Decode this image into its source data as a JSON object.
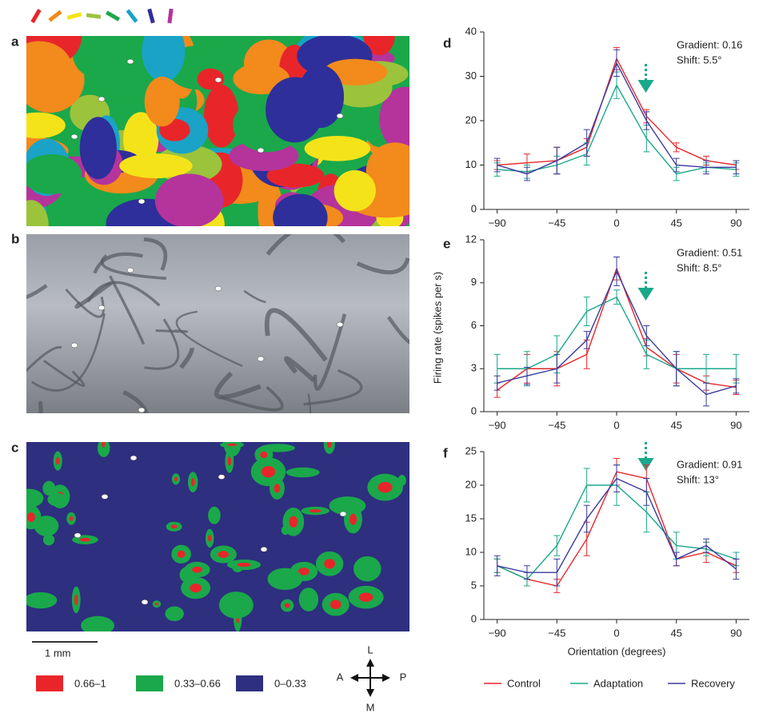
{
  "panel_labels": [
    "a",
    "b",
    "c",
    "d",
    "e",
    "f"
  ],
  "scale_bar": "1 mm",
  "map_legend": [
    {
      "label": "0.66–1",
      "color": "#e8262a"
    },
    {
      "label": "0.33–0.66",
      "color": "#1aa84b"
    },
    {
      "label": "0–0.33",
      "color": "#2e2f7f"
    }
  ],
  "compass": {
    "top": "L",
    "left": "A",
    "right": "P",
    "bottom": "M"
  },
  "chart_data": [
    {
      "type": "line",
      "annotations": [
        "Gradient: 0.16",
        "Shift: 5.5°"
      ],
      "x": [
        -90,
        -67.5,
        -45,
        -22.5,
        0,
        22.5,
        45,
        67.5,
        90
      ],
      "xlim": [
        -100,
        100
      ],
      "xticks": [
        {
          "value": -90,
          "label": "−90"
        },
        {
          "value": -45,
          "label": "−45"
        },
        0,
        45,
        90
      ],
      "ylim": [
        0,
        40
      ],
      "yticks": [
        0,
        10,
        20,
        30,
        40
      ],
      "series": [
        {
          "name": "Control",
          "color": "#e8262a",
          "values": [
            10,
            10.5,
            11,
            14,
            34,
            21,
            14,
            11,
            10
          ],
          "errors": [
            1,
            2,
            3,
            2,
            2.5,
            1.5,
            1,
            1,
            1
          ]
        },
        {
          "name": "Adaptation",
          "color": "#1aa88a",
          "values": [
            9,
            8.5,
            10,
            12.5,
            28,
            16,
            8,
            9.5,
            9
          ],
          "errors": [
            1.5,
            1.5,
            2,
            2.5,
            3,
            3,
            1.5,
            1,
            1.5
          ]
        },
        {
          "name": "Recovery",
          "color": "#3a3a9e",
          "values": [
            10,
            8,
            11,
            15,
            33,
            20,
            10,
            9.5,
            9.5
          ],
          "errors": [
            1.5,
            1.5,
            3,
            3,
            3,
            2,
            1.5,
            1.5,
            1.5
          ]
        }
      ]
    },
    {
      "type": "line",
      "annotations": [
        "Gradient: 0.51",
        "Shift: 8.5°"
      ],
      "ylabel": "Firing rate (spikes per s)",
      "x": [
        -90,
        -67.5,
        -45,
        -22.5,
        0,
        22.5,
        45,
        67.5,
        90
      ],
      "xlim": [
        -100,
        100
      ],
      "xticks": [
        {
          "value": -90,
          "label": "−90"
        },
        {
          "value": -45,
          "label": "−45"
        },
        0,
        45,
        90
      ],
      "ylim": [
        0,
        12
      ],
      "yticks": [
        0,
        3,
        6,
        9,
        12
      ],
      "series": [
        {
          "color": "#e8262a",
          "values": [
            1.5,
            3,
            3,
            4,
            10,
            4.5,
            3,
            2,
            1.7
          ],
          "errors": [
            0.5,
            1,
            1.2,
            1,
            0.8,
            0.6,
            1,
            0.5,
            0.5
          ]
        },
        {
          "color": "#1aa88a",
          "values": [
            3,
            3,
            4,
            7,
            8,
            4,
            3,
            3,
            3
          ],
          "errors": [
            1,
            1.2,
            1.3,
            1,
            0.5,
            1,
            1.2,
            1,
            1
          ]
        },
        {
          "color": "#3a3a9e",
          "values": [
            2,
            2.5,
            3,
            5,
            9.8,
            5.3,
            3,
            1.2,
            1.8
          ],
          "errors": [
            0.5,
            0.6,
            1,
            0.6,
            1,
            0.7,
            1.2,
            0.8,
            0.5
          ]
        }
      ]
    },
    {
      "type": "line",
      "annotations": [
        "Gradient: 0.91",
        "Shift: 13°"
      ],
      "xlabel": "Orientation (degrees)",
      "x": [
        -90,
        -67.5,
        -45,
        -22.5,
        0,
        22.5,
        45,
        67.5,
        90
      ],
      "xlim": [
        -100,
        100
      ],
      "xticks": [
        {
          "value": -90,
          "label": "−90"
        },
        {
          "value": -45,
          "label": "−45"
        },
        0,
        45,
        90
      ],
      "ylim": [
        0,
        25
      ],
      "yticks": [
        0,
        5,
        10,
        15,
        20,
        25
      ],
      "series": [
        {
          "color": "#e8262a",
          "values": [
            8,
            6,
            5,
            12,
            22,
            21,
            9,
            10,
            8
          ],
          "errors": [
            1,
            1,
            1,
            2.5,
            2,
            2,
            1,
            1.5,
            1
          ]
        },
        {
          "color": "#1aa88a",
          "values": [
            8,
            6,
            11,
            20,
            20,
            16,
            11,
            10.5,
            9
          ],
          "errors": [
            1,
            1,
            1.5,
            2.5,
            3,
            3,
            2,
            1,
            1
          ]
        },
        {
          "color": "#3a3a9e",
          "values": [
            8,
            7,
            7,
            15,
            21,
            19,
            9,
            11,
            7.5
          ],
          "errors": [
            1.5,
            1,
            2,
            2,
            2,
            2,
            1,
            1,
            1.5
          ]
        }
      ]
    }
  ]
}
